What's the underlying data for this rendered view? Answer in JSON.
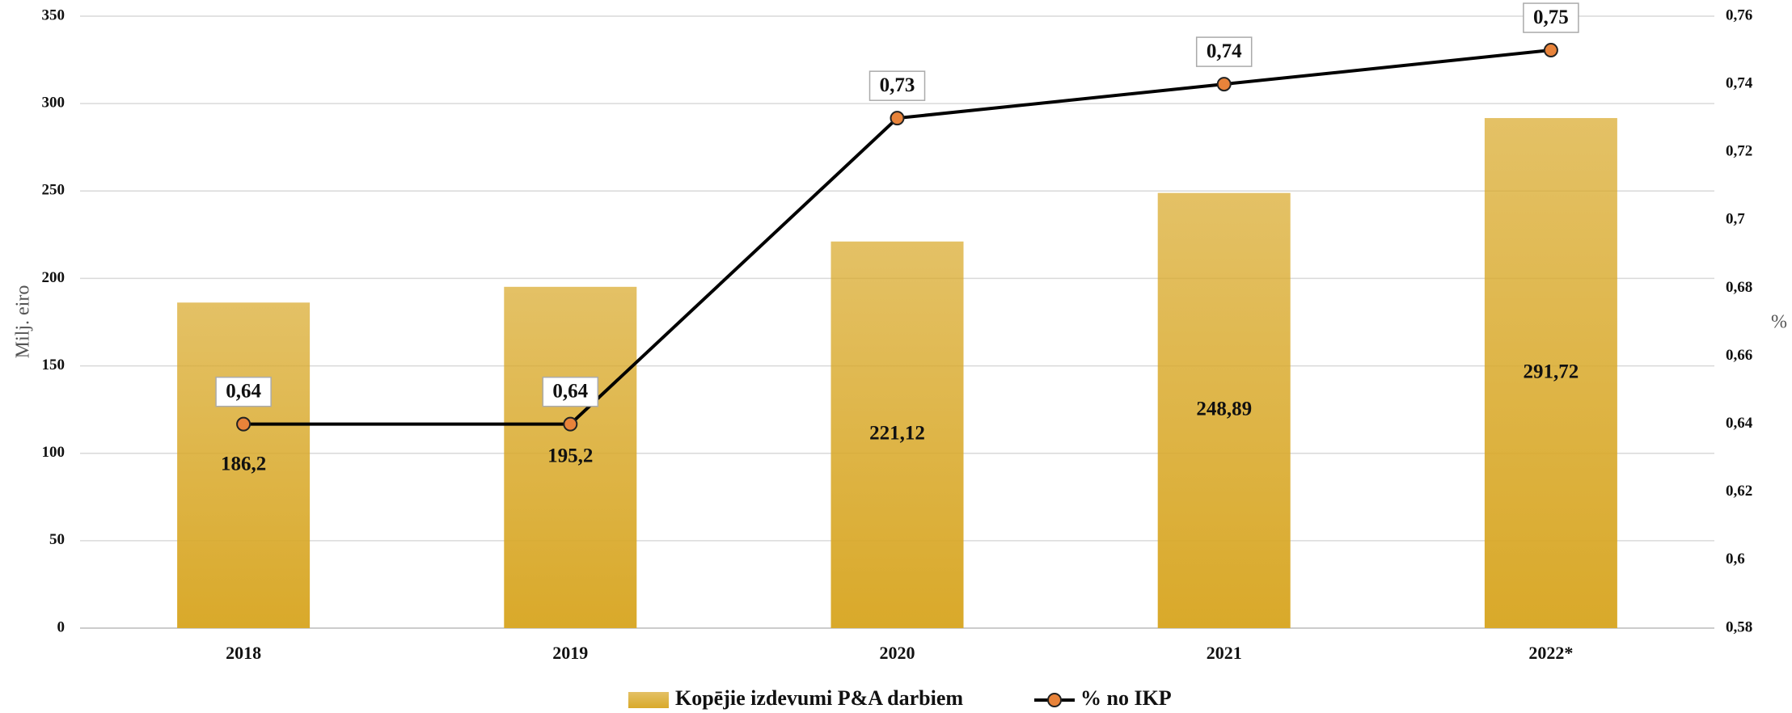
{
  "chart_data": {
    "type": "bar_line",
    "categories": [
      "2018",
      "2019",
      "2020",
      "2021",
      "2022*"
    ],
    "series": [
      {
        "name": "Kopējie izdevumi P&A darbiem",
        "type": "bar",
        "color": "#d9a92a",
        "values": [
          186.2,
          195.2,
          221.12,
          248.89,
          291.72
        ],
        "value_labels": [
          "186,2",
          "195,2",
          "221,12",
          "248,89",
          "291,72"
        ]
      },
      {
        "name": "% no IKP",
        "type": "line",
        "axis": "y2",
        "color": "#000000",
        "marker_color": "#e8833a",
        "values": [
          0.64,
          0.64,
          0.73,
          0.74,
          0.75
        ],
        "value_labels": [
          "0,64",
          "0,64",
          "0,73",
          "0,74",
          "0,75"
        ]
      }
    ],
    "y_label": "Milj. eiro",
    "y2_label": "%",
    "ylim": [
      0,
      350
    ],
    "yticks": [
      0,
      50,
      100,
      150,
      200,
      250,
      300,
      350
    ],
    "y2lim": [
      0.58,
      0.76
    ],
    "y2ticks": [
      {
        "value": 0.58,
        "label": "0,58"
      },
      {
        "value": 0.6,
        "label": "0,6"
      },
      {
        "value": 0.62,
        "label": "0,62"
      },
      {
        "value": 0.64,
        "label": "0,64"
      },
      {
        "value": 0.66,
        "label": "0,66"
      },
      {
        "value": 0.68,
        "label": "0,68"
      },
      {
        "value": 0.7,
        "label": "0,7"
      },
      {
        "value": 0.72,
        "label": "0,72"
      },
      {
        "value": 0.74,
        "label": "0,74"
      },
      {
        "value": 0.76,
        "label": "0,76"
      }
    ],
    "grid": true,
    "legend": "bottom"
  }
}
